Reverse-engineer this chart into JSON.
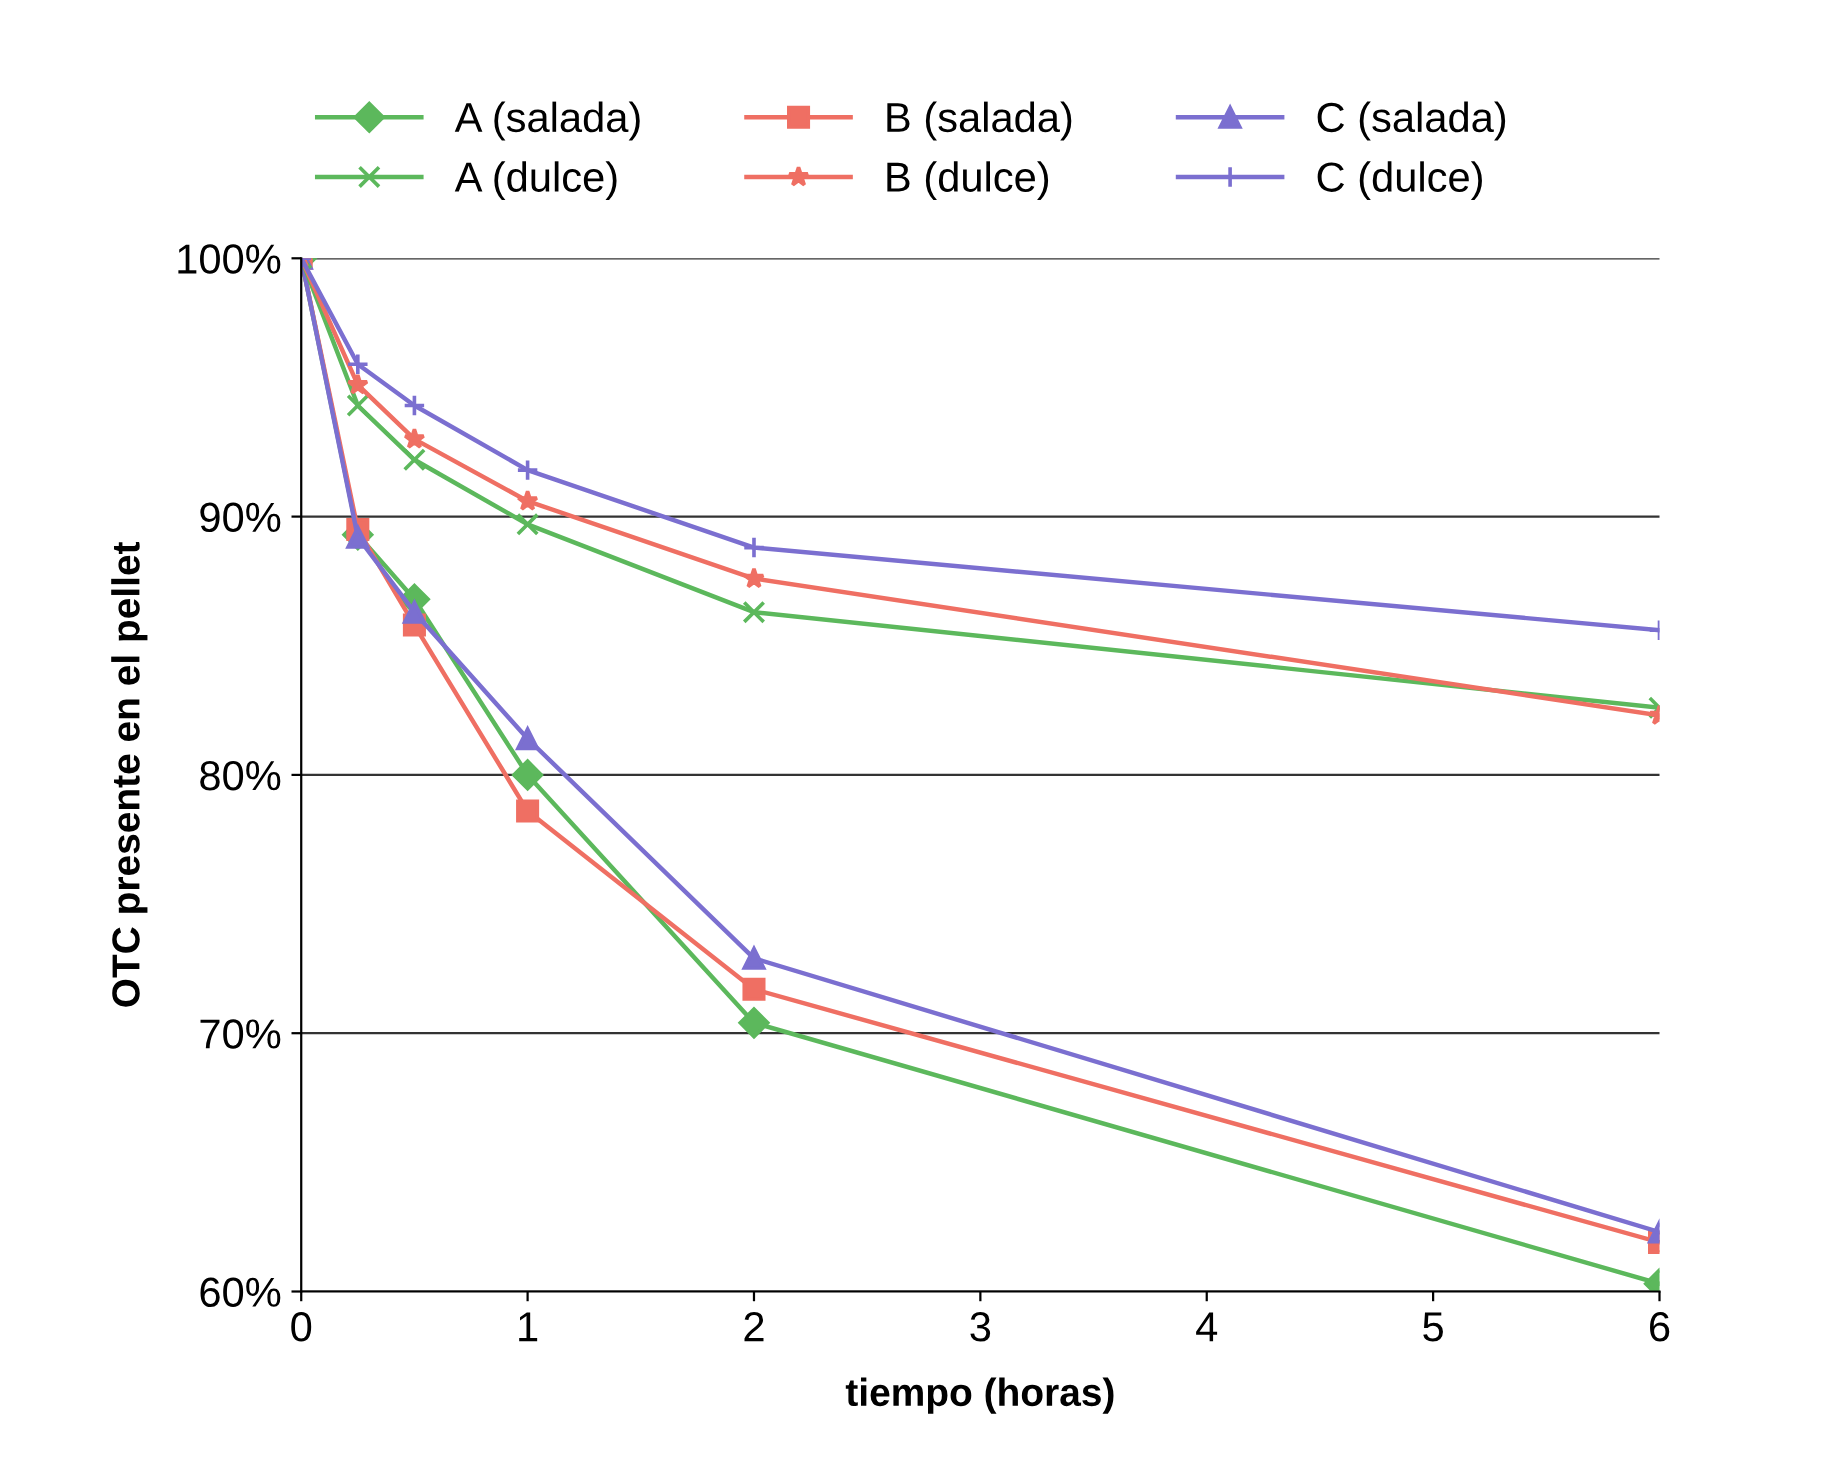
{
  "chart_data": {
    "type": "line",
    "xlabel": "tiempo (horas)",
    "ylabel": "OTC presente en el pellet",
    "x": [
      0,
      0.25,
      0.5,
      1,
      2,
      6
    ],
    "series": [
      {
        "name": "A (salada)",
        "color": "#5cb85c",
        "marker": "diamond",
        "values": [
          100,
          89.3,
          86.8,
          80.0,
          70.4,
          60.3
        ]
      },
      {
        "name": "B (salada)",
        "color": "#ef6f63",
        "marker": "square",
        "values": [
          100,
          89.5,
          85.8,
          78.6,
          71.7,
          61.9
        ]
      },
      {
        "name": "C (salada)",
        "color": "#7b6fd0",
        "marker": "triangle",
        "values": [
          100,
          89.2,
          86.3,
          81.4,
          72.9,
          62.3
        ]
      },
      {
        "name": "A (dulce)",
        "color": "#5cb85c",
        "marker": "cross",
        "values": [
          100,
          94.3,
          92.2,
          89.7,
          86.3,
          82.6
        ]
      },
      {
        "name": "B (dulce)",
        "color": "#ef6f63",
        "marker": "star",
        "values": [
          100,
          95.1,
          93.0,
          90.6,
          87.6,
          82.3
        ]
      },
      {
        "name": "C (dulce)",
        "color": "#7b6fd0",
        "marker": "plus",
        "values": [
          100,
          95.9,
          94.3,
          91.8,
          88.8,
          85.6
        ]
      }
    ],
    "xlim": [
      0,
      6
    ],
    "xticks": [
      0,
      1,
      2,
      3,
      4,
      5,
      6
    ],
    "ylim": [
      60,
      100
    ],
    "yticks": [
      {
        "value": 60,
        "label": "60%"
      },
      {
        "value": 70,
        "label": "70%"
      },
      {
        "value": 80,
        "label": "80%"
      },
      {
        "value": 90,
        "label": "90%"
      },
      {
        "value": 100,
        "label": "100%"
      }
    ],
    "grid": "y",
    "legend": "top",
    "line_style": "solid"
  }
}
